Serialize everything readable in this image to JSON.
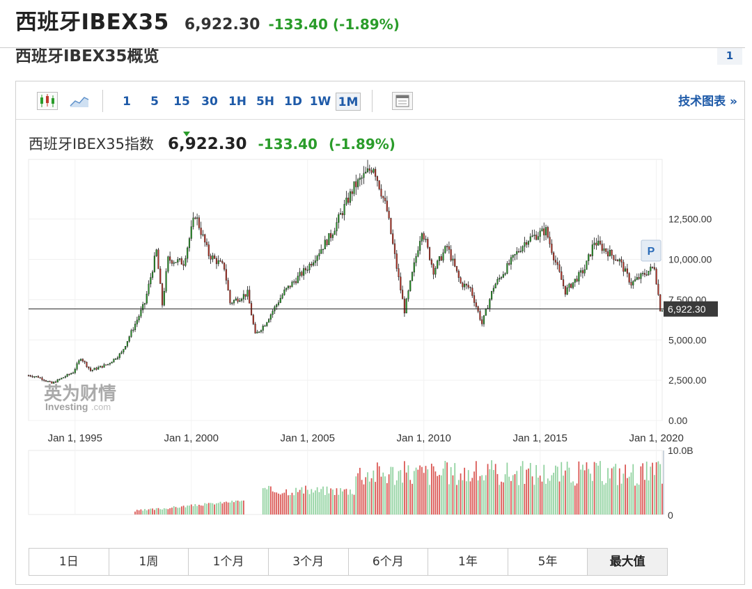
{
  "header": {
    "title": "西班牙IBEX35",
    "price": "6,922.30",
    "change": "-133.40 (-1.89%)"
  },
  "subheader": {
    "title": "西班牙IBEX35概览",
    "badge": "1"
  },
  "toolbar": {
    "intervals": [
      "1",
      "5",
      "15",
      "30",
      "1H",
      "5H",
      "1D",
      "1W",
      "1M"
    ],
    "active_interval": "1M",
    "tech_chart_link": "技术图表 »",
    "icons": [
      "candlestick-icon",
      "area-chart-icon",
      "calendar-icon"
    ]
  },
  "quote": {
    "name": "西班牙IBEX35指数",
    "price": "6,922.30",
    "change": "-133.40",
    "percent": "(-1.89%)"
  },
  "watermark": {
    "cn": "英为财情",
    "en": "Investing",
    "suffix": ".com"
  },
  "colors": {
    "up": "#2a9c2a",
    "down": "#c0392b",
    "link": "#1e5aa8",
    "vol_up": "#8fd19e",
    "vol_down": "#d9534f"
  },
  "chart_data": {
    "type": "candlestick",
    "title": "西班牙IBEX35指数",
    "x_ticks": [
      "Jan 1, 1995",
      "Jan 1, 2000",
      "Jan 1, 2005",
      "Jan 1, 2010",
      "Jan 1, 2015",
      "Jan 1, 2020"
    ],
    "y_ticks": [
      "12,500.00",
      "10,000.00",
      "7,500.00",
      "5,000.00",
      "2,500.00",
      "0.00"
    ],
    "ylim": [
      0,
      16200
    ],
    "last_price": 6922.3,
    "last_price_label": "6,922.30",
    "marker_label": "P",
    "date_range": [
      "1993-01",
      "2020-03"
    ],
    "close_series": [
      {
        "x": "1993-01",
        "y": 2800
      },
      {
        "x": "1993-06",
        "y": 2700
      },
      {
        "x": "1994-01",
        "y": 2300
      },
      {
        "x": "1994-12",
        "y": 3000
      },
      {
        "x": "1995-04",
        "y": 3900
      },
      {
        "x": "1995-09",
        "y": 3100
      },
      {
        "x": "1996-06",
        "y": 3500
      },
      {
        "x": "1997-01",
        "y": 4200
      },
      {
        "x": "1997-10",
        "y": 6500
      },
      {
        "x": "1998-01",
        "y": 7300
      },
      {
        "x": "1998-07",
        "y": 10500
      },
      {
        "x": "1998-10",
        "y": 7200
      },
      {
        "x": "1999-01",
        "y": 10000
      },
      {
        "x": "1999-09",
        "y": 9800
      },
      {
        "x": "2000-03",
        "y": 12800
      },
      {
        "x": "2000-10",
        "y": 10300
      },
      {
        "x": "2001-06",
        "y": 9500
      },
      {
        "x": "2001-09",
        "y": 7300
      },
      {
        "x": "2002-06",
        "y": 7900
      },
      {
        "x": "2002-10",
        "y": 5300
      },
      {
        "x": "2003-03",
        "y": 6000
      },
      {
        "x": "2004-01",
        "y": 8000
      },
      {
        "x": "2005-01",
        "y": 9500
      },
      {
        "x": "2006-01",
        "y": 11500
      },
      {
        "x": "2007-01",
        "y": 14500
      },
      {
        "x": "2007-11",
        "y": 15800
      },
      {
        "x": "2008-06",
        "y": 13000
      },
      {
        "x": "2008-12",
        "y": 8800
      },
      {
        "x": "2009-03",
        "y": 6800
      },
      {
        "x": "2009-12",
        "y": 11900
      },
      {
        "x": "2010-06",
        "y": 9300
      },
      {
        "x": "2011-01",
        "y": 10800
      },
      {
        "x": "2011-08",
        "y": 8500
      },
      {
        "x": "2012-01",
        "y": 8200
      },
      {
        "x": "2012-07",
        "y": 6000
      },
      {
        "x": "2013-01",
        "y": 8300
      },
      {
        "x": "2014-01",
        "y": 10400
      },
      {
        "x": "2014-06",
        "y": 11200
      },
      {
        "x": "2015-04",
        "y": 11800
      },
      {
        "x": "2015-08",
        "y": 10200
      },
      {
        "x": "2016-02",
        "y": 8000
      },
      {
        "x": "2016-12",
        "y": 9400
      },
      {
        "x": "2017-05",
        "y": 11100
      },
      {
        "x": "2018-06",
        "y": 9900
      },
      {
        "x": "2018-12",
        "y": 8500
      },
      {
        "x": "2019-12",
        "y": 9550
      },
      {
        "x": "2020-03",
        "y": 6922
      }
    ],
    "volume": {
      "ylim": [
        0,
        10000000000
      ],
      "y_ticks": [
        "10.0B",
        "0"
      ]
    }
  },
  "range_buttons": [
    "1日",
    "1周",
    "1个月",
    "3个月",
    "6个月",
    "1年",
    "5年",
    "最大值"
  ],
  "active_range": "最大值"
}
